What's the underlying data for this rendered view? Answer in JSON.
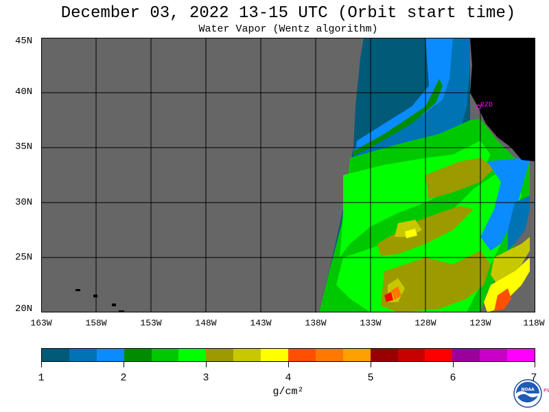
{
  "header": {
    "title": "December 03, 2022  13-15 UTC  (Orbit start time)",
    "subtitle": "Water Vapor (Wentz algorithm)"
  },
  "map": {
    "lat_labels": [
      "45N",
      "40N",
      "35N",
      "30N",
      "25N",
      "20N"
    ],
    "lon_labels": [
      "163W",
      "158W",
      "153W",
      "148W",
      "143W",
      "138W",
      "133W",
      "128W",
      "123W",
      "118W"
    ],
    "marker_label": "CZD",
    "colors": {
      "no_data": "#666666",
      "land": "#000000",
      "grid": "#000000",
      "marker": "#ff00ff"
    }
  },
  "colorbar": {
    "tick_labels": [
      "1",
      "2",
      "3",
      "4",
      "5",
      "6",
      "7"
    ],
    "units": "g/cm²",
    "colors": [
      "#005a78",
      "#0073b4",
      "#0a8cff",
      "#008c00",
      "#00c800",
      "#00ff00",
      "#9b9b00",
      "#c8c800",
      "#ffff00",
      "#ff5000",
      "#ff7800",
      "#ffa000",
      "#9b0000",
      "#c80000",
      "#ff0000",
      "#9b009b",
      "#c800c8",
      "#ff00ff"
    ]
  },
  "logo": {
    "text": "NOAA",
    "side_text": "PSL"
  }
}
